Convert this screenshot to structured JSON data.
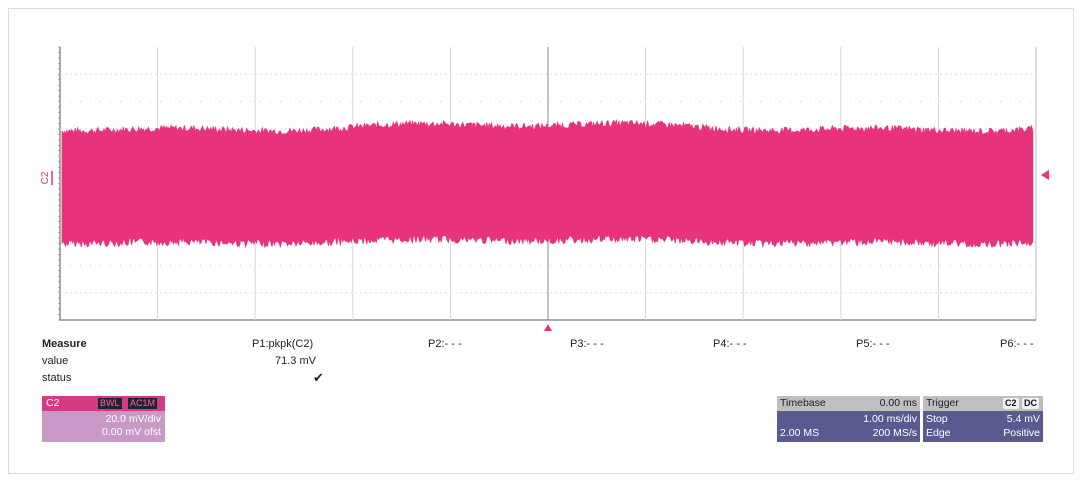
{
  "waveform": {
    "channel_label": "C2",
    "trace_color": "#e8337a"
  },
  "measure": {
    "title": "Measure",
    "row_labels": [
      "value",
      "status"
    ],
    "params": [
      {
        "name": "P1:pkpk(C2)",
        "value": "71.3 mV",
        "status_icon": "checkmark-icon"
      },
      {
        "name": "P2:- - -"
      },
      {
        "name": "P3:- - -"
      },
      {
        "name": "P4:- - -"
      },
      {
        "name": "P5:- - -"
      },
      {
        "name": "P6:- - -"
      }
    ]
  },
  "channel_panel": {
    "name": "C2",
    "badge1": "BWL",
    "badge2": "AC1M",
    "vdiv": "20.0 mV/div",
    "offset": "0.00 mV ofst"
  },
  "timebase_panel": {
    "title": "Timebase",
    "delay": "0.00 ms",
    "tdiv": "1.00 ms/div",
    "points": "2.00 MS",
    "rate": "200 MS/s"
  },
  "trigger_panel": {
    "title": "Trigger",
    "badge1": "C2",
    "badge2": "DC",
    "mode": "Stop",
    "level": "5.4 mV",
    "type": "Edge",
    "slope": "Positive"
  }
}
